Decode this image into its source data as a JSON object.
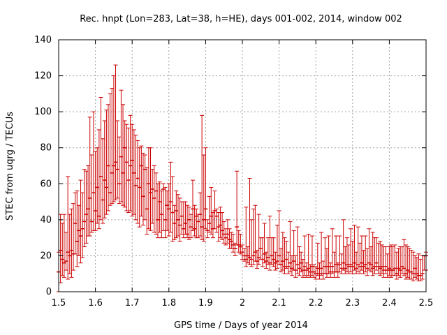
{
  "chart_data": {
    "type": "scatter",
    "title": "Rec. hnpt (Lon=283, Lat=38, h=HE), days 001-002, 2014, window 002",
    "xlabel": "GPS time / Days of year 2014",
    "ylabel": "STEC from uqrg / TECUs",
    "xlim": [
      1.5,
      2.5
    ],
    "ylim": [
      0,
      140
    ],
    "x_ticks": [
      "1.5",
      "1.6",
      "1.7",
      "1.8",
      "1.9",
      "2",
      "2.1",
      "2.2",
      "2.3",
      "2.4",
      "2.5"
    ],
    "y_ticks": [
      "0",
      "20",
      "40",
      "60",
      "80",
      "100",
      "120",
      "140"
    ],
    "grid": true,
    "series_color": "#cc0000",
    "error_bars": [
      [
        1.5,
        11,
        0,
        22
      ],
      [
        1.505,
        23,
        5,
        43
      ],
      [
        1.51,
        18,
        9,
        38
      ],
      [
        1.515,
        16,
        8,
        43
      ],
      [
        1.52,
        17,
        12,
        33
      ],
      [
        1.525,
        22,
        7,
        64
      ],
      [
        1.53,
        20,
        10,
        43
      ],
      [
        1.535,
        23,
        8,
        46
      ],
      [
        1.54,
        21,
        12,
        49
      ],
      [
        1.545,
        38,
        21,
        55
      ],
      [
        1.55,
        28,
        14,
        56
      ],
      [
        1.555,
        34,
        20,
        48
      ],
      [
        1.56,
        31,
        16,
        62
      ],
      [
        1.565,
        35,
        19,
        55
      ],
      [
        1.57,
        39,
        25,
        68
      ],
      [
        1.575,
        43,
        27,
        67
      ],
      [
        1.58,
        46,
        31,
        70
      ],
      [
        1.585,
        52,
        31,
        97
      ],
      [
        1.59,
        39,
        33,
        76
      ],
      [
        1.595,
        55,
        34,
        100
      ],
      [
        1.6,
        45,
        34,
        78
      ],
      [
        1.605,
        58,
        38,
        80
      ],
      [
        1.61,
        42,
        35,
        90
      ],
      [
        1.615,
        64,
        40,
        108
      ],
      [
        1.62,
        51,
        38,
        85
      ],
      [
        1.625,
        62,
        41,
        95
      ],
      [
        1.63,
        58,
        43,
        101
      ],
      [
        1.635,
        70,
        45,
        104
      ],
      [
        1.64,
        55,
        48,
        110
      ],
      [
        1.645,
        66,
        49,
        113
      ],
      [
        1.65,
        70,
        50,
        120
      ],
      [
        1.655,
        72,
        51,
        126
      ],
      [
        1.66,
        68,
        52,
        95
      ],
      [
        1.665,
        60,
        49,
        86
      ],
      [
        1.67,
        75,
        50,
        112
      ],
      [
        1.675,
        66,
        48,
        104
      ],
      [
        1.68,
        80,
        47,
        95
      ],
      [
        1.685,
        72,
        45,
        93
      ],
      [
        1.69,
        62,
        44,
        91
      ],
      [
        1.695,
        70,
        45,
        98
      ],
      [
        1.7,
        73,
        42,
        93
      ],
      [
        1.705,
        66,
        43,
        90
      ],
      [
        1.71,
        59,
        40,
        87
      ],
      [
        1.715,
        63,
        38,
        84
      ],
      [
        1.72,
        58,
        36,
        80
      ],
      [
        1.725,
        70,
        42,
        81
      ],
      [
        1.73,
        53,
        37,
        77
      ],
      [
        1.735,
        68,
        40,
        76
      ],
      [
        1.74,
        46,
        32,
        69
      ],
      [
        1.745,
        60,
        35,
        80
      ],
      [
        1.75,
        55,
        34,
        80
      ],
      [
        1.755,
        57,
        38,
        68
      ],
      [
        1.76,
        52,
        33,
        70
      ],
      [
        1.765,
        56,
        32,
        66
      ],
      [
        1.77,
        40,
        30,
        60
      ],
      [
        1.775,
        50,
        33,
        61
      ],
      [
        1.78,
        43,
        30,
        56
      ],
      [
        1.785,
        57,
        34,
        60
      ],
      [
        1.79,
        40,
        30,
        58
      ],
      [
        1.795,
        48,
        34,
        56
      ],
      [
        1.8,
        46,
        31,
        60
      ],
      [
        1.805,
        50,
        33,
        72
      ],
      [
        1.81,
        44,
        28,
        64
      ],
      [
        1.815,
        38,
        29,
        48
      ],
      [
        1.82,
        45,
        30,
        56
      ],
      [
        1.825,
        40,
        31,
        54
      ],
      [
        1.83,
        37,
        28,
        52
      ],
      [
        1.835,
        42,
        32,
        50
      ],
      [
        1.84,
        35,
        30,
        50
      ],
      [
        1.845,
        38,
        32,
        50
      ],
      [
        1.85,
        32,
        30,
        48
      ],
      [
        1.855,
        40,
        29,
        47
      ],
      [
        1.86,
        36,
        30,
        43
      ],
      [
        1.865,
        46,
        34,
        62
      ],
      [
        1.87,
        35,
        31,
        48
      ],
      [
        1.875,
        42,
        30,
        46
      ],
      [
        1.88,
        39,
        30,
        43
      ],
      [
        1.885,
        43,
        31,
        55
      ],
      [
        1.89,
        36,
        29,
        98
      ],
      [
        1.895,
        40,
        28,
        76
      ],
      [
        1.9,
        46,
        35,
        80
      ],
      [
        1.905,
        34,
        30,
        40
      ],
      [
        1.91,
        38,
        33,
        53
      ],
      [
        1.915,
        42,
        32,
        58
      ],
      [
        1.92,
        35,
        30,
        44
      ],
      [
        1.925,
        45,
        35,
        56
      ],
      [
        1.93,
        42,
        33,
        46
      ],
      [
        1.935,
        36,
        28,
        44
      ],
      [
        1.94,
        37,
        30,
        47
      ],
      [
        1.945,
        34,
        29,
        44
      ],
      [
        1.95,
        32,
        27,
        39
      ],
      [
        1.955,
        30,
        26,
        35
      ],
      [
        1.96,
        32,
        27,
        40
      ],
      [
        1.965,
        29,
        24,
        35
      ],
      [
        1.97,
        28,
        24,
        33
      ],
      [
        1.975,
        26,
        22,
        32
      ],
      [
        1.98,
        24,
        20,
        27
      ],
      [
        1.985,
        36,
        26,
        67
      ],
      [
        1.99,
        26,
        22,
        34
      ],
      [
        1.995,
        25,
        21,
        32
      ],
      [
        2.0,
        22,
        18,
        26
      ],
      [
        2.005,
        20,
        17,
        24
      ],
      [
        2.01,
        18,
        14,
        47
      ],
      [
        2.015,
        20,
        16,
        25
      ],
      [
        2.02,
        19,
        15,
        63
      ],
      [
        2.025,
        18,
        14,
        40
      ],
      [
        2.03,
        20,
        15,
        46
      ],
      [
        2.035,
        22,
        17,
        48
      ],
      [
        2.04,
        17,
        13,
        23
      ],
      [
        2.045,
        19,
        15,
        43
      ],
      [
        2.05,
        24,
        18,
        30
      ],
      [
        2.055,
        18,
        14,
        30
      ],
      [
        2.06,
        21,
        16,
        38
      ],
      [
        2.065,
        17,
        13,
        22
      ],
      [
        2.07,
        19,
        15,
        30
      ],
      [
        2.075,
        16,
        12,
        42
      ],
      [
        2.08,
        20,
        15,
        30
      ],
      [
        2.085,
        18,
        14,
        30
      ],
      [
        2.09,
        16,
        12,
        22
      ],
      [
        2.095,
        17,
        13,
        37
      ],
      [
        2.1,
        20,
        15,
        45
      ],
      [
        2.105,
        15,
        11,
        24
      ],
      [
        2.11,
        17,
        12,
        33
      ],
      [
        2.115,
        14,
        10,
        30
      ],
      [
        2.12,
        18,
        13,
        28
      ],
      [
        2.125,
        14,
        10,
        22
      ],
      [
        2.13,
        16,
        11,
        39
      ],
      [
        2.135,
        13,
        9,
        20
      ],
      [
        2.14,
        17,
        12,
        34
      ],
      [
        2.145,
        12,
        8,
        20
      ],
      [
        2.15,
        15,
        10,
        36
      ],
      [
        2.155,
        13,
        9,
        25
      ],
      [
        2.16,
        16,
        11,
        22
      ],
      [
        2.165,
        12,
        8,
        18
      ],
      [
        2.17,
        14,
        9,
        31
      ],
      [
        2.175,
        12,
        8,
        16
      ],
      [
        2.18,
        13,
        9,
        32
      ],
      [
        2.185,
        11,
        8,
        15
      ],
      [
        2.19,
        14,
        9,
        31
      ],
      [
        2.195,
        11,
        8,
        15
      ],
      [
        2.2,
        10,
        7,
        14
      ],
      [
        2.205,
        13,
        9,
        27
      ],
      [
        2.21,
        10,
        7,
        16
      ],
      [
        2.215,
        13,
        9,
        33
      ],
      [
        2.22,
        10,
        7,
        17
      ],
      [
        2.225,
        14,
        10,
        30
      ],
      [
        2.23,
        10,
        8,
        24
      ],
      [
        2.235,
        14,
        10,
        31
      ],
      [
        2.24,
        11,
        8,
        16
      ],
      [
        2.245,
        14,
        10,
        35
      ],
      [
        2.25,
        11,
        8,
        22
      ],
      [
        2.255,
        15,
        11,
        31
      ],
      [
        2.26,
        11,
        8,
        16
      ],
      [
        2.265,
        15,
        11,
        31
      ],
      [
        2.27,
        13,
        10,
        21
      ],
      [
        2.275,
        16,
        12,
        40
      ],
      [
        2.28,
        13,
        10,
        25
      ],
      [
        2.285,
        15,
        11,
        30
      ],
      [
        2.29,
        14,
        10,
        26
      ],
      [
        2.295,
        15,
        11,
        35
      ],
      [
        2.3,
        14,
        10,
        28
      ],
      [
        2.305,
        16,
        12,
        37
      ],
      [
        2.31,
        13,
        10,
        22
      ],
      [
        2.315,
        15,
        11,
        36
      ],
      [
        2.32,
        14,
        10,
        27
      ],
      [
        2.325,
        16,
        12,
        31
      ],
      [
        2.33,
        14,
        10,
        23
      ],
      [
        2.335,
        15,
        11,
        31
      ],
      [
        2.34,
        13,
        9,
        24
      ],
      [
        2.345,
        16,
        12,
        35
      ],
      [
        2.35,
        15,
        11,
        25
      ],
      [
        2.355,
        13,
        9,
        33
      ],
      [
        2.36,
        14,
        10,
        30
      ],
      [
        2.365,
        16,
        12,
        30
      ],
      [
        2.37,
        14,
        10,
        27
      ],
      [
        2.375,
        13,
        9,
        28
      ],
      [
        2.38,
        14,
        10,
        26
      ],
      [
        2.385,
        12,
        8,
        25
      ],
      [
        2.39,
        14,
        10,
        25
      ],
      [
        2.395,
        12,
        8,
        21
      ],
      [
        2.4,
        13,
        9,
        25
      ],
      [
        2.405,
        12,
        8,
        26
      ],
      [
        2.41,
        12,
        9,
        25
      ],
      [
        2.415,
        13,
        9,
        26
      ],
      [
        2.42,
        10,
        7,
        22
      ],
      [
        2.425,
        13,
        9,
        24
      ],
      [
        2.43,
        12,
        8,
        25
      ],
      [
        2.435,
        14,
        10,
        25
      ],
      [
        2.44,
        13,
        9,
        29
      ],
      [
        2.445,
        10,
        7,
        26
      ],
      [
        2.45,
        12,
        8,
        25
      ],
      [
        2.455,
        11,
        7,
        24
      ],
      [
        2.46,
        11,
        7,
        23
      ],
      [
        2.465,
        10,
        6,
        22
      ],
      [
        2.47,
        13,
        8,
        20
      ],
      [
        2.475,
        10,
        7,
        19
      ],
      [
        2.48,
        9,
        6,
        21
      ],
      [
        2.485,
        9,
        6,
        18
      ],
      [
        2.49,
        10,
        7,
        20
      ],
      [
        2.495,
        20,
        12,
        20
      ],
      [
        2.5,
        20,
        12,
        22
      ]
    ]
  }
}
